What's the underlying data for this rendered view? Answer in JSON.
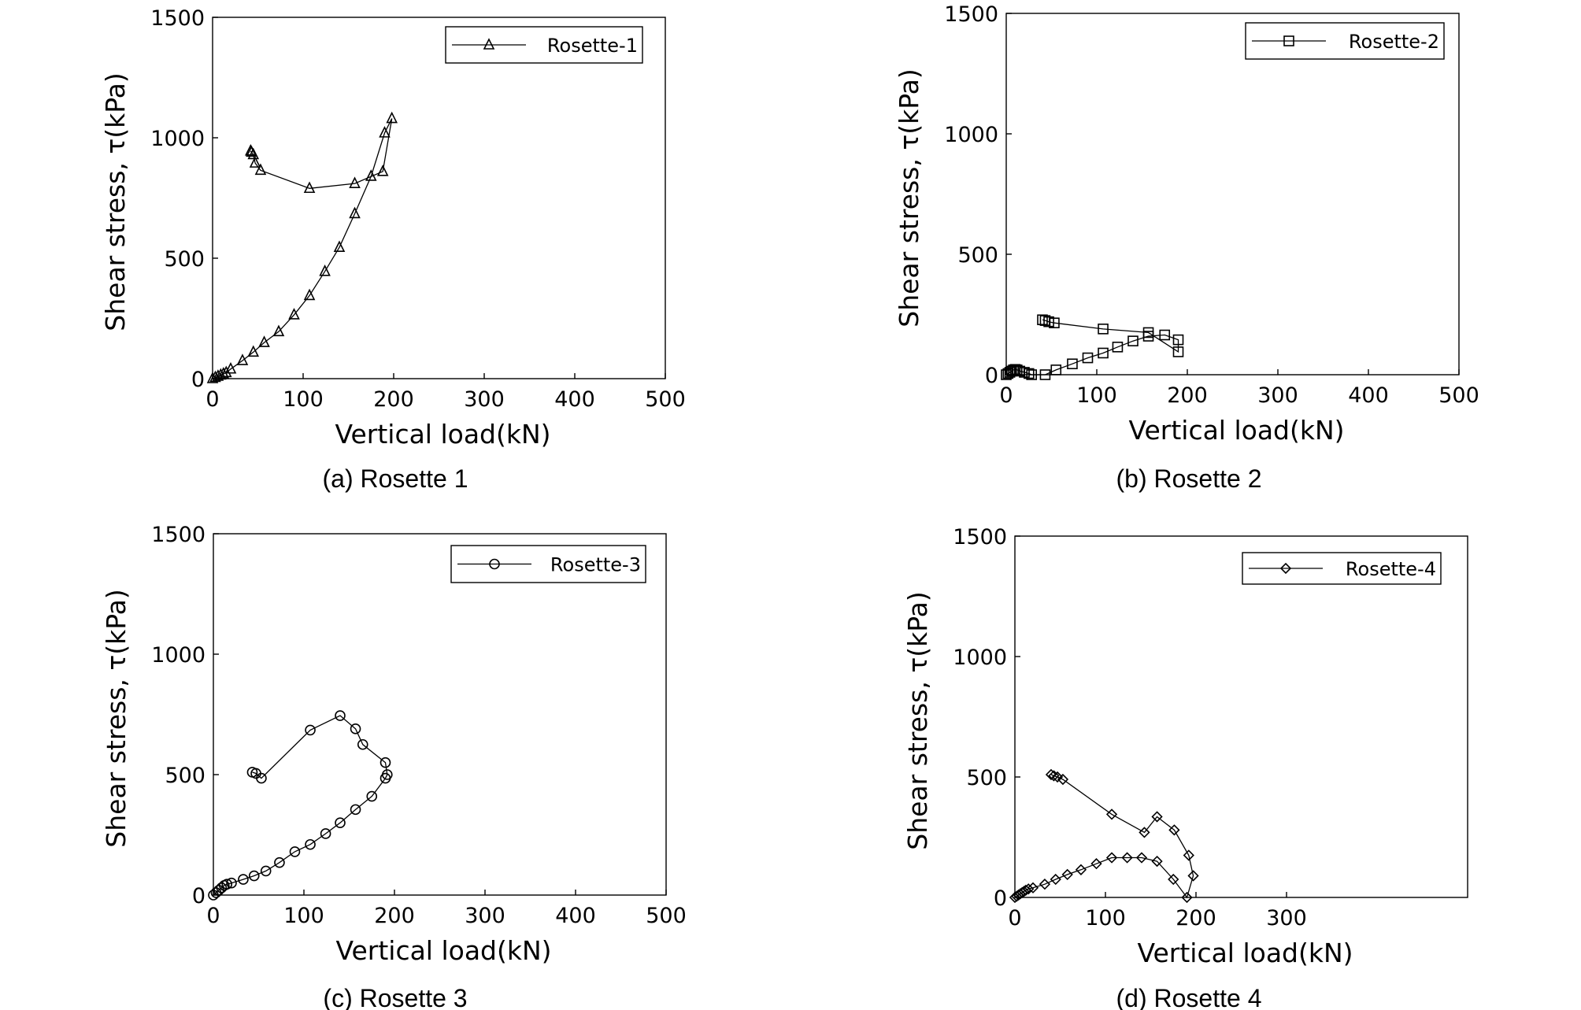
{
  "chart_data": [
    {
      "type": "line",
      "caption": "(a) Rosette 1",
      "xlabel": "Vertical load(kN)",
      "ylabel": "Shear stress, τ(kPa)",
      "xlim": [
        0,
        500
      ],
      "ylim": [
        0,
        1500
      ],
      "xticks": [
        "0",
        "100",
        "200",
        "300",
        "400",
        "500"
      ],
      "yticks": [
        "0",
        "500",
        "1000",
        "1500"
      ],
      "legend_position": "top-right",
      "grid": false,
      "series": [
        {
          "name": "Rosette-1",
          "marker": "triangle",
          "x": [
            0,
            3,
            6,
            9,
            12,
            15,
            20,
            33,
            45,
            57,
            73,
            90,
            107,
            124,
            140,
            157,
            175,
            190,
            198,
            188,
            157,
            107,
            53,
            47,
            45,
            43,
            42
          ],
          "y": [
            0,
            5,
            10,
            15,
            20,
            25,
            40,
            75,
            110,
            150,
            195,
            265,
            345,
            445,
            545,
            685,
            840,
            1020,
            1080,
            860,
            810,
            790,
            865,
            895,
            930,
            940,
            945
          ]
        }
      ]
    },
    {
      "type": "line",
      "caption": "(b) Rosette 2",
      "xlabel": "Vertical load(kN)",
      "ylabel": "Shear stress, τ(kPa)",
      "xlim": [
        0,
        500
      ],
      "ylim": [
        0,
        1500
      ],
      "xticks": [
        "0",
        "100",
        "200",
        "300",
        "400",
        "500"
      ],
      "yticks": [
        "0",
        "500",
        "1000",
        "1500"
      ],
      "legend_position": "top-right",
      "grid": false,
      "series": [
        {
          "name": "Rosette-2",
          "marker": "square",
          "x": [
            0,
            2,
            4,
            6,
            8,
            10,
            12,
            15,
            20,
            25,
            28,
            43,
            55,
            73,
            90,
            107,
            123,
            140,
            157,
            175,
            190,
            190,
            157,
            107,
            53,
            47,
            43,
            40
          ],
          "y": [
            0,
            5,
            10,
            15,
            20,
            22,
            20,
            15,
            10,
            5,
            0,
            0,
            20,
            45,
            70,
            90,
            115,
            140,
            160,
            165,
            145,
            95,
            175,
            190,
            215,
            220,
            225,
            228
          ]
        }
      ]
    },
    {
      "type": "line",
      "caption": "(c) Rosette 3",
      "xlabel": "Vertical load(kN)",
      "ylabel": "Shear stress, τ(kPa)",
      "xlim": [
        0,
        500
      ],
      "ylim": [
        0,
        1500
      ],
      "xticks": [
        "0",
        "100",
        "200",
        "300",
        "400",
        "500"
      ],
      "yticks": [
        "0",
        "500",
        "1000",
        "1500"
      ],
      "legend_position": "top-right",
      "grid": false,
      "series": [
        {
          "name": "Rosette-3",
          "marker": "circle",
          "x": [
            0,
            3,
            6,
            9,
            12,
            15,
            20,
            33,
            45,
            58,
            73,
            90,
            107,
            124,
            140,
            157,
            175,
            190,
            192,
            190,
            165,
            157,
            140,
            107,
            53,
            47,
            43
          ],
          "y": [
            0,
            10,
            20,
            30,
            40,
            45,
            50,
            65,
            80,
            100,
            135,
            180,
            210,
            255,
            300,
            355,
            410,
            485,
            500,
            550,
            625,
            690,
            745,
            685,
            485,
            505,
            510
          ]
        }
      ]
    },
    {
      "type": "line",
      "caption": "(d) Rosette 4",
      "xlabel": "Vertical load(kN)",
      "ylabel": "Shear stress, τ(kPa)",
      "xlim": [
        0,
        500
      ],
      "ylim": [
        0,
        1500
      ],
      "xticks": [
        "0",
        "100",
        "200",
        "300"
      ],
      "yticks": [
        "0",
        "500",
        "1000",
        "1500"
      ],
      "legend_position": "top-right",
      "grid": false,
      "series": [
        {
          "name": "Rosette-4",
          "marker": "diamond",
          "x": [
            0,
            2,
            4,
            6,
            8,
            10,
            12,
            15,
            20,
            33,
            45,
            58,
            73,
            90,
            107,
            124,
            140,
            157,
            175,
            190,
            197,
            192,
            176,
            157,
            143,
            107,
            53,
            47,
            43,
            40
          ],
          "y": [
            0,
            5,
            10,
            15,
            20,
            25,
            30,
            35,
            40,
            55,
            75,
            95,
            115,
            140,
            165,
            165,
            165,
            150,
            75,
            0,
            90,
            175,
            280,
            335,
            270,
            345,
            490,
            500,
            505,
            510
          ]
        }
      ]
    }
  ]
}
